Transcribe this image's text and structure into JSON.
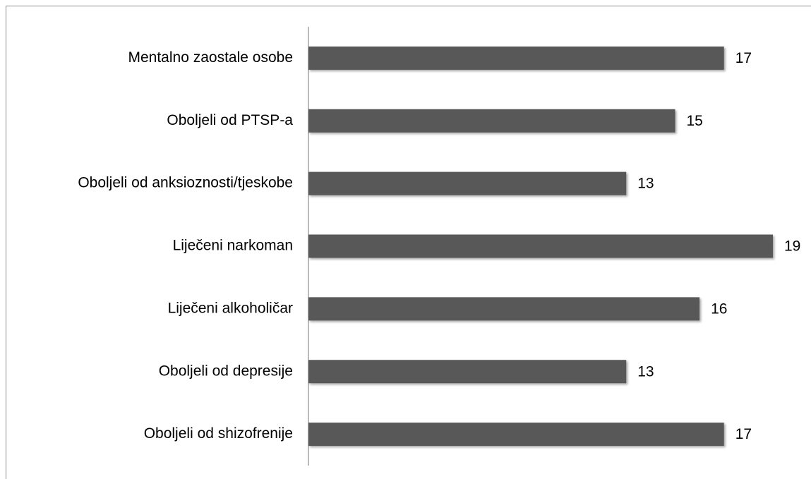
{
  "chart_data": {
    "type": "bar",
    "orientation": "horizontal",
    "categories": [
      "Mentalno zaostale osobe",
      "Oboljeli od PTSP-a",
      "Oboljeli od anksioznosti/tjeskobe",
      "Liječeni narkoman",
      "Liječeni alkoholičar",
      "Oboljeli od depresije",
      "Oboljeli od shizofrenije"
    ],
    "values": [
      17,
      15,
      13,
      19,
      16,
      13,
      17
    ],
    "color": "#595959"
  }
}
